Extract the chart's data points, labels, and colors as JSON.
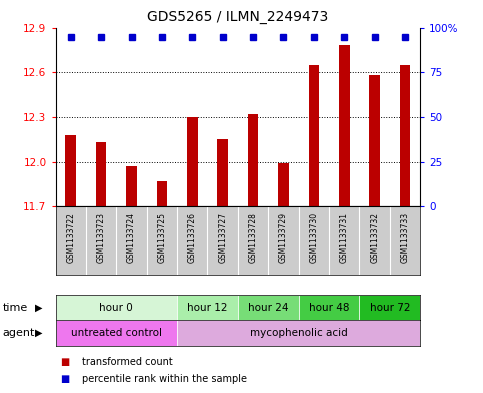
{
  "title": "GDS5265 / ILMN_2249473",
  "samples": [
    "GSM1133722",
    "GSM1133723",
    "GSM1133724",
    "GSM1133725",
    "GSM1133726",
    "GSM1133727",
    "GSM1133728",
    "GSM1133729",
    "GSM1133730",
    "GSM1133731",
    "GSM1133732",
    "GSM1133733"
  ],
  "bar_values": [
    12.18,
    12.13,
    11.97,
    11.87,
    12.3,
    12.15,
    12.32,
    11.99,
    12.65,
    12.78,
    12.58,
    12.65
  ],
  "bar_color": "#bb0000",
  "percentile_color": "#0000cc",
  "ylim": [
    11.7,
    12.9
  ],
  "yticks": [
    11.7,
    12.0,
    12.3,
    12.6,
    12.9
  ],
  "right_yticks": [
    0,
    25,
    50,
    75,
    100
  ],
  "time_groups": [
    {
      "label": "hour 0",
      "start": 0,
      "end": 4,
      "color": "#d6f5d6"
    },
    {
      "label": "hour 12",
      "start": 4,
      "end": 6,
      "color": "#aaeeaa"
    },
    {
      "label": "hour 24",
      "start": 6,
      "end": 8,
      "color": "#77dd77"
    },
    {
      "label": "hour 48",
      "start": 8,
      "end": 10,
      "color": "#44cc44"
    },
    {
      "label": "hour 72",
      "start": 10,
      "end": 12,
      "color": "#22bb22"
    }
  ],
  "agent_groups": [
    {
      "label": "untreated control",
      "start": 0,
      "end": 4,
      "color": "#ee77ee"
    },
    {
      "label": "mycophenolic acid",
      "start": 4,
      "end": 12,
      "color": "#ddaadd"
    }
  ],
  "bar_width": 0.35,
  "background_color": "#ffffff",
  "sample_box_color": "#cccccc",
  "legend_items": [
    {
      "label": "transformed count",
      "color": "#bb0000"
    },
    {
      "label": "percentile rank within the sample",
      "color": "#0000cc"
    }
  ]
}
